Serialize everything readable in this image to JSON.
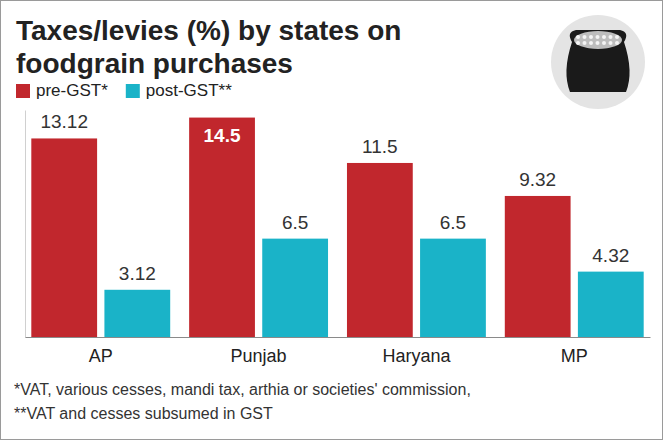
{
  "chart_data": {
    "type": "bar",
    "title": "Taxes/levies (%) by states on foodgrain purchases",
    "categories": [
      "AP",
      "Punjab",
      "Haryana",
      "MP"
    ],
    "series": [
      {
        "name": "pre-GST*",
        "color": "#c1272d",
        "values": [
          13.12,
          14.5,
          11.5,
          9.32
        ]
      },
      {
        "name": "post-GST**",
        "color": "#1ab3c8",
        "values": [
          3.12,
          6.5,
          6.5,
          4.32
        ]
      }
    ],
    "ylim": [
      0,
      15
    ],
    "data_labels": true,
    "tick_labels": "x",
    "grid": false,
    "legend": "top-left",
    "annotations": [
      "*VAT, various cesses, mandi tax, arthia or societies' commission,",
      "**VAT and cesses subsumed in GST"
    ]
  }
}
